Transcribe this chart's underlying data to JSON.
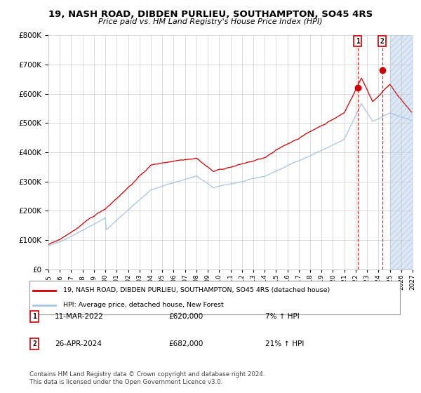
{
  "title": "19, NASH ROAD, DIBDEN PURLIEU, SOUTHAMPTON, SO45 4RS",
  "subtitle": "Price paid vs. HM Land Registry's House Price Index (HPI)",
  "legend_line1": "19, NASH ROAD, DIBDEN PURLIEU, SOUTHAMPTON, SO45 4RS (detached house)",
  "legend_line2": "HPI: Average price, detached house, New Forest",
  "annotation1_date": "11-MAR-2022",
  "annotation1_price": "£620,000",
  "annotation1_hpi": "7% ↑ HPI",
  "annotation1_value": 620000,
  "annotation1_year": 2022.18,
  "annotation2_date": "26-APR-2024",
  "annotation2_price": "£682,000",
  "annotation2_hpi": "21% ↑ HPI",
  "annotation2_value": 682000,
  "annotation2_year": 2024.32,
  "footer": "Contains HM Land Registry data © Crown copyright and database right 2024.\nThis data is licensed under the Open Government Licence v3.0.",
  "hpi_color": "#a8c4e0",
  "price_color": "#cc0000",
  "annotation_color": "#cc0000",
  "background_color": "#ffffff",
  "shade_future_color": "#dce8f5",
  "ylim": [
    0,
    800000
  ],
  "xlim_start": 1995,
  "xlim_end": 2027,
  "future_start": 2025
}
